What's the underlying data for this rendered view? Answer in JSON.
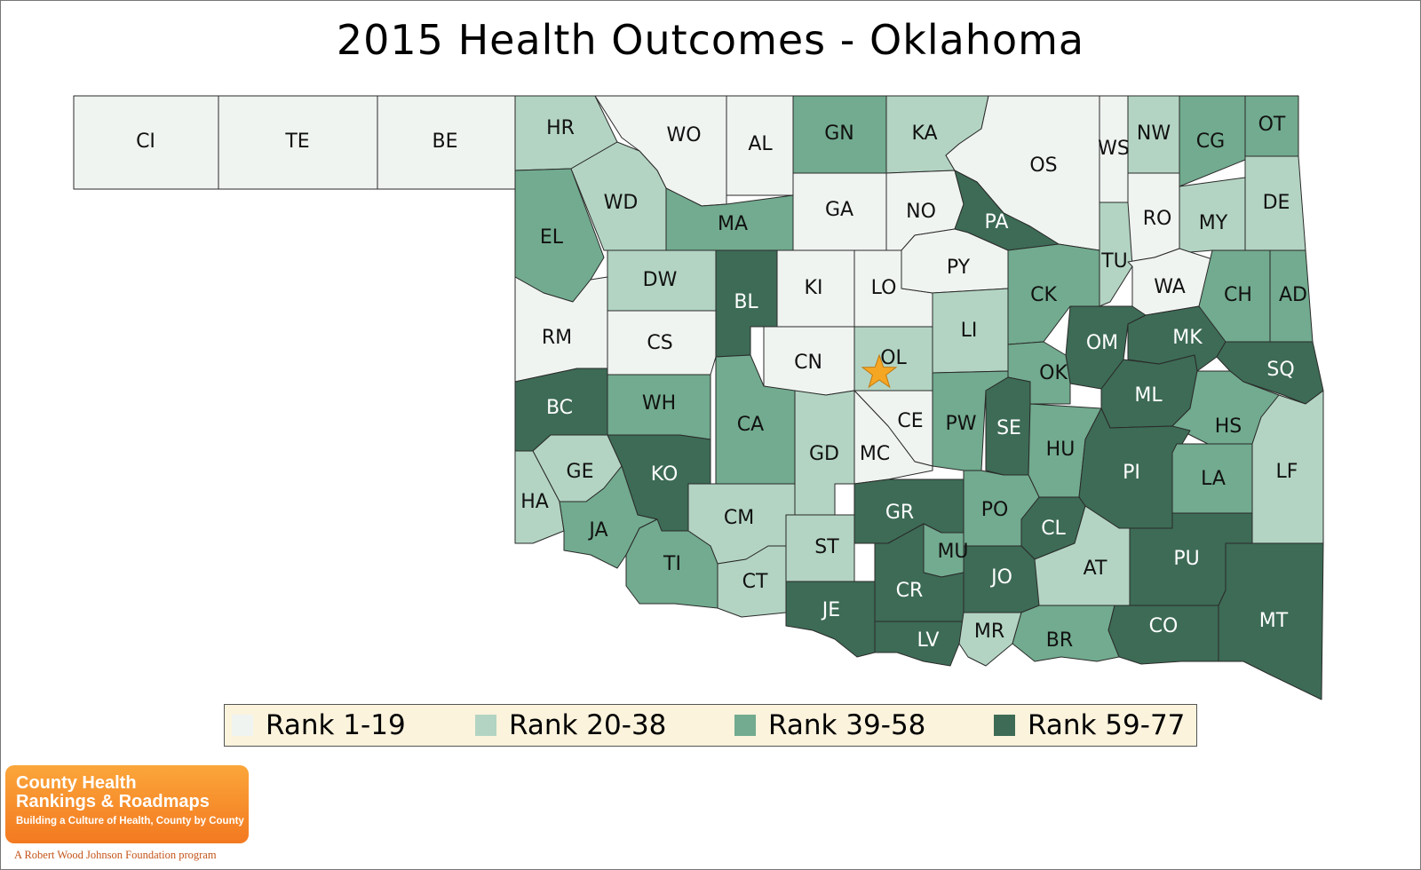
{
  "title": "2015 Health Outcomes - Oklahoma",
  "legend": [
    {
      "label": "Rank 1-19",
      "color": "#f0f4f1"
    },
    {
      "label": "Rank 20-38",
      "color": "#b3d4c3"
    },
    {
      "label": "Rank 39-58",
      "color": "#72ab8f"
    },
    {
      "label": "Rank 59-77",
      "color": "#3d6b56"
    }
  ],
  "counties": [
    {
      "abbr": "CI",
      "rank_class": 1
    },
    {
      "abbr": "TE",
      "rank_class": 1
    },
    {
      "abbr": "BE",
      "rank_class": 1
    },
    {
      "abbr": "HR",
      "rank_class": 2
    },
    {
      "abbr": "WO",
      "rank_class": 1
    },
    {
      "abbr": "AL",
      "rank_class": 1
    },
    {
      "abbr": "GN",
      "rank_class": 3
    },
    {
      "abbr": "KA",
      "rank_class": 2
    },
    {
      "abbr": "OS",
      "rank_class": 1
    },
    {
      "abbr": "WS",
      "rank_class": 1
    },
    {
      "abbr": "NW",
      "rank_class": 2
    },
    {
      "abbr": "CG",
      "rank_class": 3
    },
    {
      "abbr": "OT",
      "rank_class": 3
    },
    {
      "abbr": "EL",
      "rank_class": 3
    },
    {
      "abbr": "WD",
      "rank_class": 2
    },
    {
      "abbr": "MA",
      "rank_class": 3
    },
    {
      "abbr": "GA",
      "rank_class": 1
    },
    {
      "abbr": "NO",
      "rank_class": 1
    },
    {
      "abbr": "PA",
      "rank_class": 4
    },
    {
      "abbr": "RO",
      "rank_class": 1
    },
    {
      "abbr": "MY",
      "rank_class": 2
    },
    {
      "abbr": "DE",
      "rank_class": 2
    },
    {
      "abbr": "DW",
      "rank_class": 2
    },
    {
      "abbr": "BL",
      "rank_class": 4
    },
    {
      "abbr": "KI",
      "rank_class": 1
    },
    {
      "abbr": "LO",
      "rank_class": 1
    },
    {
      "abbr": "PY",
      "rank_class": 1
    },
    {
      "abbr": "TU",
      "rank_class": 2
    },
    {
      "abbr": "WA",
      "rank_class": 1
    },
    {
      "abbr": "CH",
      "rank_class": 3
    },
    {
      "abbr": "AD",
      "rank_class": 3
    },
    {
      "abbr": "RM",
      "rank_class": 1
    },
    {
      "abbr": "CS",
      "rank_class": 1
    },
    {
      "abbr": "LI",
      "rank_class": 2
    },
    {
      "abbr": "CK",
      "rank_class": 3
    },
    {
      "abbr": "OM",
      "rank_class": 4
    },
    {
      "abbr": "MK",
      "rank_class": 4
    },
    {
      "abbr": "SQ",
      "rank_class": 4
    },
    {
      "abbr": "CN",
      "rank_class": 1
    },
    {
      "abbr": "OL",
      "rank_class": 2
    },
    {
      "abbr": "OK",
      "rank_class": 3
    },
    {
      "abbr": "ML",
      "rank_class": 4
    },
    {
      "abbr": "BC",
      "rank_class": 4
    },
    {
      "abbr": "WH",
      "rank_class": 3
    },
    {
      "abbr": "CA",
      "rank_class": 3
    },
    {
      "abbr": "CE",
      "rank_class": 1
    },
    {
      "abbr": "PW",
      "rank_class": 3
    },
    {
      "abbr": "SE",
      "rank_class": 4
    },
    {
      "abbr": "HU",
      "rank_class": 3
    },
    {
      "abbr": "HS",
      "rank_class": 3
    },
    {
      "abbr": "GE",
      "rank_class": 2
    },
    {
      "abbr": "KO",
      "rank_class": 4
    },
    {
      "abbr": "GD",
      "rank_class": 2
    },
    {
      "abbr": "MC",
      "rank_class": 1
    },
    {
      "abbr": "PI",
      "rank_class": 4
    },
    {
      "abbr": "LA",
      "rank_class": 3
    },
    {
      "abbr": "LF",
      "rank_class": 2
    },
    {
      "abbr": "HA",
      "rank_class": 2
    },
    {
      "abbr": "JA",
      "rank_class": 3
    },
    {
      "abbr": "CM",
      "rank_class": 2
    },
    {
      "abbr": "GR",
      "rank_class": 4
    },
    {
      "abbr": "PO",
      "rank_class": 3
    },
    {
      "abbr": "CL",
      "rank_class": 4
    },
    {
      "abbr": "TI",
      "rank_class": 3
    },
    {
      "abbr": "ST",
      "rank_class": 2
    },
    {
      "abbr": "MU",
      "rank_class": 3
    },
    {
      "abbr": "AT",
      "rank_class": 2
    },
    {
      "abbr": "PU",
      "rank_class": 4
    },
    {
      "abbr": "CT",
      "rank_class": 2
    },
    {
      "abbr": "CR",
      "rank_class": 4
    },
    {
      "abbr": "JO",
      "rank_class": 4
    },
    {
      "abbr": "JE",
      "rank_class": 4
    },
    {
      "abbr": "LV",
      "rank_class": 4
    },
    {
      "abbr": "MR",
      "rank_class": 2
    },
    {
      "abbr": "BR",
      "rank_class": 3
    },
    {
      "abbr": "CO",
      "rank_class": 4
    },
    {
      "abbr": "MT",
      "rank_class": 4
    }
  ],
  "highlight": {
    "county": "OL",
    "marker_color": "#f5a623"
  },
  "logo": {
    "line1": "County Health",
    "line2": "Rankings & Roadmaps",
    "tagline": "Building a Culture of Health, County by County",
    "program": "A Robert Wood Johnson Foundation program"
  }
}
